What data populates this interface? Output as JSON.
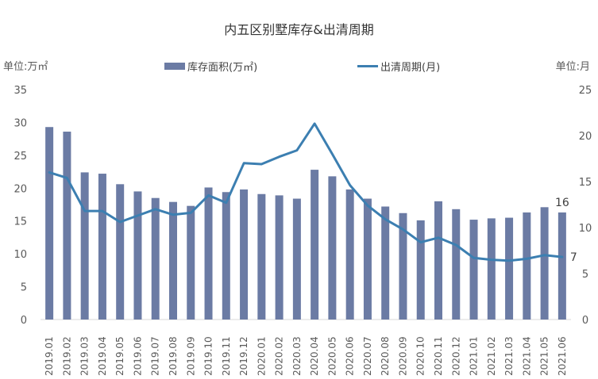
{
  "chart_data": {
    "type": "bar+line",
    "title": "内五区别墅库存&出清周期",
    "y_left_label": "单位:万㎡",
    "y_right_label": "单位:月",
    "y_left_lim": [
      0,
      35
    ],
    "y_left_ticks": [
      "0",
      "5",
      "10",
      "15",
      "20",
      "25",
      "30",
      "35"
    ],
    "y_right_lim": [
      0,
      25
    ],
    "y_right_ticks": [
      "0",
      "5",
      "10",
      "15",
      "20",
      "25"
    ],
    "categories": [
      "2019.01",
      "2019.02",
      "2019.03",
      "2019.04",
      "2019.05",
      "2019.06",
      "2019.07",
      "2019.08",
      "2019.09",
      "2019.10",
      "2019.11",
      "2019.12",
      "2020.01",
      "2020.02",
      "2020.03",
      "2020.04",
      "2020.05",
      "2020.06",
      "2020.07",
      "2020.08",
      "2020.09",
      "2020.10",
      "2020.11",
      "2020.12",
      "2021.01",
      "2021.02",
      "2021.03",
      "2021.04",
      "2021.05",
      "2021.06"
    ],
    "series": [
      {
        "name": "库存面积(万㎡)",
        "type": "bar",
        "axis": "left",
        "color": "#6b7ba4",
        "values": [
          29.3,
          28.6,
          22.4,
          22.2,
          20.6,
          19.5,
          18.5,
          17.9,
          17.3,
          20.1,
          19.4,
          19.8,
          19.1,
          18.9,
          18.4,
          22.8,
          21.8,
          19.8,
          18.4,
          17.2,
          16.2,
          15.1,
          18.0,
          16.8,
          15.2,
          15.4,
          15.5,
          16.3,
          17.1,
          16.3
        ]
      },
      {
        "name": "出清周期(月)",
        "type": "line",
        "axis": "right",
        "color": "#3c7fb1",
        "values": [
          16.0,
          15.4,
          11.8,
          11.8,
          10.6,
          11.3,
          12.0,
          11.4,
          11.6,
          13.5,
          12.7,
          17.0,
          16.9,
          17.7,
          18.4,
          21.3,
          18.0,
          14.6,
          12.4,
          10.9,
          9.8,
          8.4,
          8.9,
          8.1,
          6.7,
          6.5,
          6.4,
          6.6,
          7.0,
          6.8
        ]
      }
    ],
    "data_labels": [
      {
        "series": 0,
        "index": 29,
        "text": "16"
      },
      {
        "series": 1,
        "index": 29,
        "text": "7"
      }
    ],
    "legend_position": "top",
    "grid": false
  }
}
